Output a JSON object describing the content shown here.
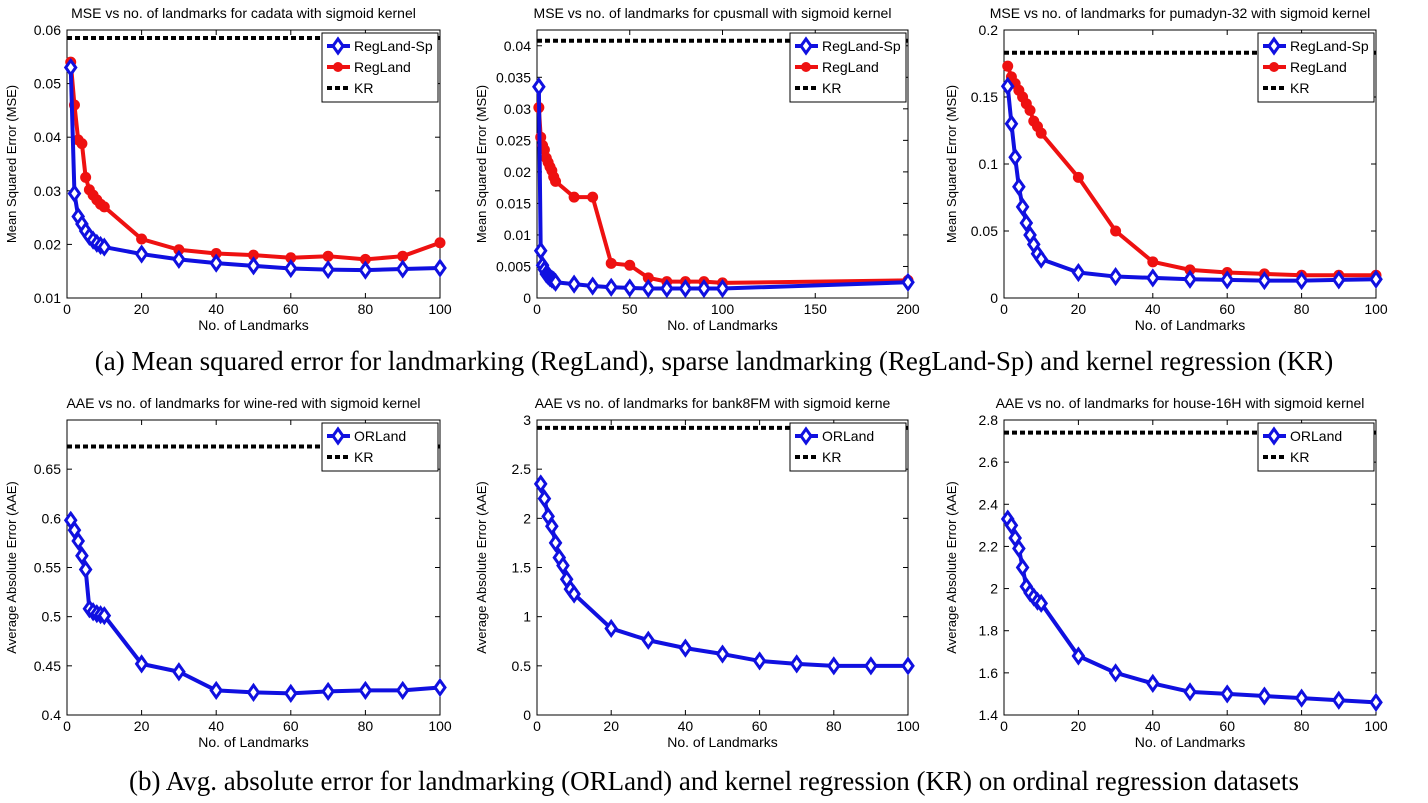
{
  "captions": {
    "a": "(a) Mean squared error for landmarking (RegLand), sparse landmarking (RegLand-Sp) and kernel regression (KR)",
    "b": "(b) Avg. absolute error for landmarking (ORLand) and kernel regression (KR) on ordinal regression datasets"
  },
  "colors": {
    "blue": "#1010e0",
    "red": "#ee1111",
    "black": "#000000"
  },
  "chart_data": [
    {
      "type": "line",
      "title": "MSE vs no. of landmarks for cadata with sigmoid kernel",
      "xlabel": "No. of Landmarks",
      "ylabel": "Mean Squared Error (MSE)",
      "xlim": [
        0,
        100
      ],
      "ylim": [
        0.01,
        0.06
      ],
      "xticks": [
        0,
        20,
        40,
        60,
        80,
        100
      ],
      "yticks": [
        0.01,
        0.02,
        0.03,
        0.04,
        0.05,
        0.06
      ],
      "ytick_labels": [
        "0.01",
        "0.02",
        "0.03",
        "0.04",
        "0.05",
        "0.06"
      ],
      "legend_position": "top-right",
      "series": [
        {
          "name": "RegLand-Sp",
          "color": "blue",
          "marker": "diamond",
          "x": [
            1,
            2,
            3,
            4,
            5,
            6,
            7,
            8,
            9,
            10,
            20,
            30,
            40,
            50,
            60,
            70,
            80,
            90,
            100
          ],
          "y": [
            0.053,
            0.0295,
            0.0252,
            0.0238,
            0.0225,
            0.0215,
            0.0208,
            0.0202,
            0.0198,
            0.0195,
            0.0182,
            0.0172,
            0.0165,
            0.016,
            0.0155,
            0.0153,
            0.0152,
            0.0154,
            0.0156
          ]
        },
        {
          "name": "RegLand",
          "color": "red",
          "marker": "circle",
          "x": [
            1,
            2,
            3,
            4,
            5,
            6,
            7,
            8,
            9,
            10,
            20,
            30,
            40,
            50,
            60,
            70,
            80,
            90,
            100
          ],
          "y": [
            0.054,
            0.046,
            0.0395,
            0.0388,
            0.0325,
            0.0302,
            0.0292,
            0.0283,
            0.0275,
            0.027,
            0.021,
            0.019,
            0.0183,
            0.018,
            0.0175,
            0.0178,
            0.0172,
            0.0178,
            0.0203
          ]
        },
        {
          "name": "KR",
          "color": "black",
          "marker": "none",
          "style": "dotted",
          "x": [
            0,
            100
          ],
          "y": [
            0.0585,
            0.0585
          ]
        }
      ]
    },
    {
      "type": "line",
      "title": "MSE vs no. of landmarks for cpusmall with sigmoid kernel",
      "xlabel": "No. of Landmarks",
      "ylabel": "Mean Squared Error (MSE)",
      "xlim": [
        0,
        200
      ],
      "ylim": [
        0,
        0.0425
      ],
      "xticks": [
        0,
        50,
        100,
        150,
        200
      ],
      "yticks": [
        0,
        0.005,
        0.01,
        0.015,
        0.02,
        0.025,
        0.03,
        0.035,
        0.04
      ],
      "ytick_labels": [
        "0",
        "0.005",
        "0.01",
        "0.015",
        "0.02",
        "0.025",
        "0.03",
        "0.035",
        "0.04"
      ],
      "legend_position": "top-right",
      "series": [
        {
          "name": "RegLand-Sp",
          "color": "blue",
          "marker": "diamond",
          "x": [
            1,
            2,
            3,
            4,
            5,
            6,
            7,
            8,
            9,
            10,
            20,
            30,
            40,
            50,
            60,
            70,
            80,
            90,
            100,
            200
          ],
          "y": [
            0.0335,
            0.0075,
            0.0052,
            0.0045,
            0.0038,
            0.0035,
            0.0032,
            0.003,
            0.0028,
            0.0025,
            0.0022,
            0.0019,
            0.0017,
            0.0016,
            0.0015,
            0.0015,
            0.0015,
            0.0015,
            0.0015,
            0.0025
          ]
        },
        {
          "name": "RegLand",
          "color": "red",
          "marker": "circle",
          "x": [
            1,
            2,
            3,
            4,
            5,
            6,
            7,
            8,
            9,
            10,
            20,
            30,
            40,
            50,
            60,
            70,
            80,
            90,
            100,
            200
          ],
          "y": [
            0.0302,
            0.0255,
            0.0242,
            0.0235,
            0.0222,
            0.0215,
            0.0208,
            0.0202,
            0.0192,
            0.0185,
            0.016,
            0.016,
            0.0055,
            0.0052,
            0.0032,
            0.0026,
            0.0026,
            0.0026,
            0.0024,
            0.0028
          ]
        },
        {
          "name": "KR",
          "color": "black",
          "marker": "none",
          "style": "dotted",
          "x": [
            0,
            200
          ],
          "y": [
            0.0408,
            0.0408
          ]
        }
      ]
    },
    {
      "type": "line",
      "title": "MSE vs no. of landmarks for pumadyn-32 with sigmoid kernel",
      "xlabel": "No. of Landmarks",
      "ylabel": "Mean Squared Error (MSE)",
      "xlim": [
        0,
        100
      ],
      "ylim": [
        0,
        0.2
      ],
      "xticks": [
        0,
        20,
        40,
        60,
        80,
        100
      ],
      "yticks": [
        0,
        0.05,
        0.1,
        0.15,
        0.2
      ],
      "ytick_labels": [
        "0",
        "0.05",
        "0.1",
        "0.15",
        "0.2"
      ],
      "legend_position": "top-right",
      "series": [
        {
          "name": "RegLand-Sp",
          "color": "blue",
          "marker": "diamond",
          "x": [
            1,
            2,
            3,
            4,
            5,
            6,
            7,
            8,
            9,
            10,
            20,
            30,
            40,
            50,
            60,
            70,
            80,
            90,
            100
          ],
          "y": [
            0.158,
            0.13,
            0.105,
            0.083,
            0.068,
            0.056,
            0.047,
            0.04,
            0.033,
            0.029,
            0.019,
            0.016,
            0.015,
            0.014,
            0.0135,
            0.013,
            0.013,
            0.0135,
            0.014
          ]
        },
        {
          "name": "RegLand",
          "color": "red",
          "marker": "circle",
          "x": [
            1,
            2,
            3,
            4,
            5,
            6,
            7,
            8,
            9,
            10,
            20,
            30,
            40,
            50,
            60,
            70,
            80,
            90,
            100
          ],
          "y": [
            0.173,
            0.165,
            0.16,
            0.155,
            0.15,
            0.145,
            0.14,
            0.132,
            0.128,
            0.123,
            0.09,
            0.05,
            0.027,
            0.021,
            0.019,
            0.018,
            0.017,
            0.017,
            0.017
          ]
        },
        {
          "name": "KR",
          "color": "black",
          "marker": "none",
          "style": "dotted",
          "x": [
            0,
            100
          ],
          "y": [
            0.183,
            0.183
          ]
        }
      ]
    },
    {
      "type": "line",
      "title": "AAE vs no. of landmarks for wine-red with sigmoid kernel",
      "xlabel": "No. of Landmarks",
      "ylabel": "Average Absolute Error (AAE)",
      "xlim": [
        0,
        100
      ],
      "ylim": [
        0.4,
        0.7
      ],
      "xticks": [
        0,
        20,
        40,
        60,
        80,
        100
      ],
      "yticks": [
        0.4,
        0.45,
        0.5,
        0.55,
        0.6,
        0.65
      ],
      "ytick_labels": [
        "0.4",
        "0.45",
        "0.5",
        "0.55",
        "0.6",
        "0.65"
      ],
      "legend_position": "top-right",
      "series": [
        {
          "name": "ORLand",
          "color": "blue",
          "marker": "diamond",
          "x": [
            1,
            2,
            3,
            4,
            5,
            6,
            7,
            8,
            9,
            10,
            20,
            30,
            40,
            50,
            60,
            70,
            80,
            90,
            100
          ],
          "y": [
            0.598,
            0.588,
            0.577,
            0.562,
            0.548,
            0.508,
            0.505,
            0.503,
            0.502,
            0.501,
            0.452,
            0.444,
            0.425,
            0.423,
            0.422,
            0.424,
            0.425,
            0.425,
            0.428
          ]
        },
        {
          "name": "KR",
          "color": "black",
          "marker": "none",
          "style": "dotted",
          "x": [
            0,
            100
          ],
          "y": [
            0.673,
            0.673
          ]
        }
      ]
    },
    {
      "type": "line",
      "title": "AAE vs no. of landmarks for bank8FM with sigmoid kerne",
      "xlabel": "No. of Landmarks",
      "ylabel": "Average Absolute Error (AAE)",
      "xlim": [
        0,
        100
      ],
      "ylim": [
        0,
        3
      ],
      "xticks": [
        0,
        20,
        40,
        60,
        80,
        100
      ],
      "yticks": [
        0,
        0.5,
        1,
        1.5,
        2,
        2.5,
        3
      ],
      "ytick_labels": [
        "0",
        "0.5",
        "1",
        "1.5",
        "2",
        "2.5",
        "3"
      ],
      "legend_position": "top-right",
      "series": [
        {
          "name": "ORLand",
          "color": "blue",
          "marker": "diamond",
          "x": [
            1,
            2,
            3,
            4,
            5,
            6,
            7,
            8,
            9,
            10,
            20,
            30,
            40,
            50,
            60,
            70,
            80,
            90,
            100
          ],
          "y": [
            2.35,
            2.2,
            2.02,
            1.92,
            1.75,
            1.6,
            1.52,
            1.38,
            1.28,
            1.23,
            0.88,
            0.76,
            0.68,
            0.62,
            0.55,
            0.52,
            0.5,
            0.5,
            0.5
          ]
        },
        {
          "name": "KR",
          "color": "black",
          "marker": "none",
          "style": "dotted",
          "x": [
            0,
            100
          ],
          "y": [
            2.92,
            2.92
          ]
        }
      ]
    },
    {
      "type": "line",
      "title": "AAE vs no. of landmarks for house-16H with sigmoid kernel",
      "xlabel": "No. of Landmarks",
      "ylabel": "Average Absolute Error (AAE)",
      "xlim": [
        0,
        100
      ],
      "ylim": [
        1.4,
        2.8
      ],
      "xticks": [
        0,
        20,
        40,
        60,
        80,
        100
      ],
      "yticks": [
        1.4,
        1.6,
        1.8,
        2,
        2.2,
        2.4,
        2.6,
        2.8
      ],
      "ytick_labels": [
        "1.4",
        "1.6",
        "1.8",
        "2",
        "2.2",
        "2.4",
        "2.6",
        "2.8"
      ],
      "legend_position": "top-right",
      "series": [
        {
          "name": "ORLand",
          "color": "blue",
          "marker": "diamond",
          "x": [
            1,
            2,
            3,
            4,
            5,
            6,
            7,
            8,
            9,
            10,
            20,
            30,
            40,
            50,
            60,
            70,
            80,
            90,
            100
          ],
          "y": [
            2.33,
            2.3,
            2.24,
            2.19,
            2.1,
            2.01,
            1.98,
            1.96,
            1.94,
            1.93,
            1.68,
            1.6,
            1.55,
            1.51,
            1.5,
            1.49,
            1.48,
            1.47,
            1.46
          ]
        },
        {
          "name": "KR",
          "color": "black",
          "marker": "none",
          "style": "dotted",
          "x": [
            0,
            100
          ],
          "y": [
            2.74,
            2.74
          ]
        }
      ]
    }
  ]
}
